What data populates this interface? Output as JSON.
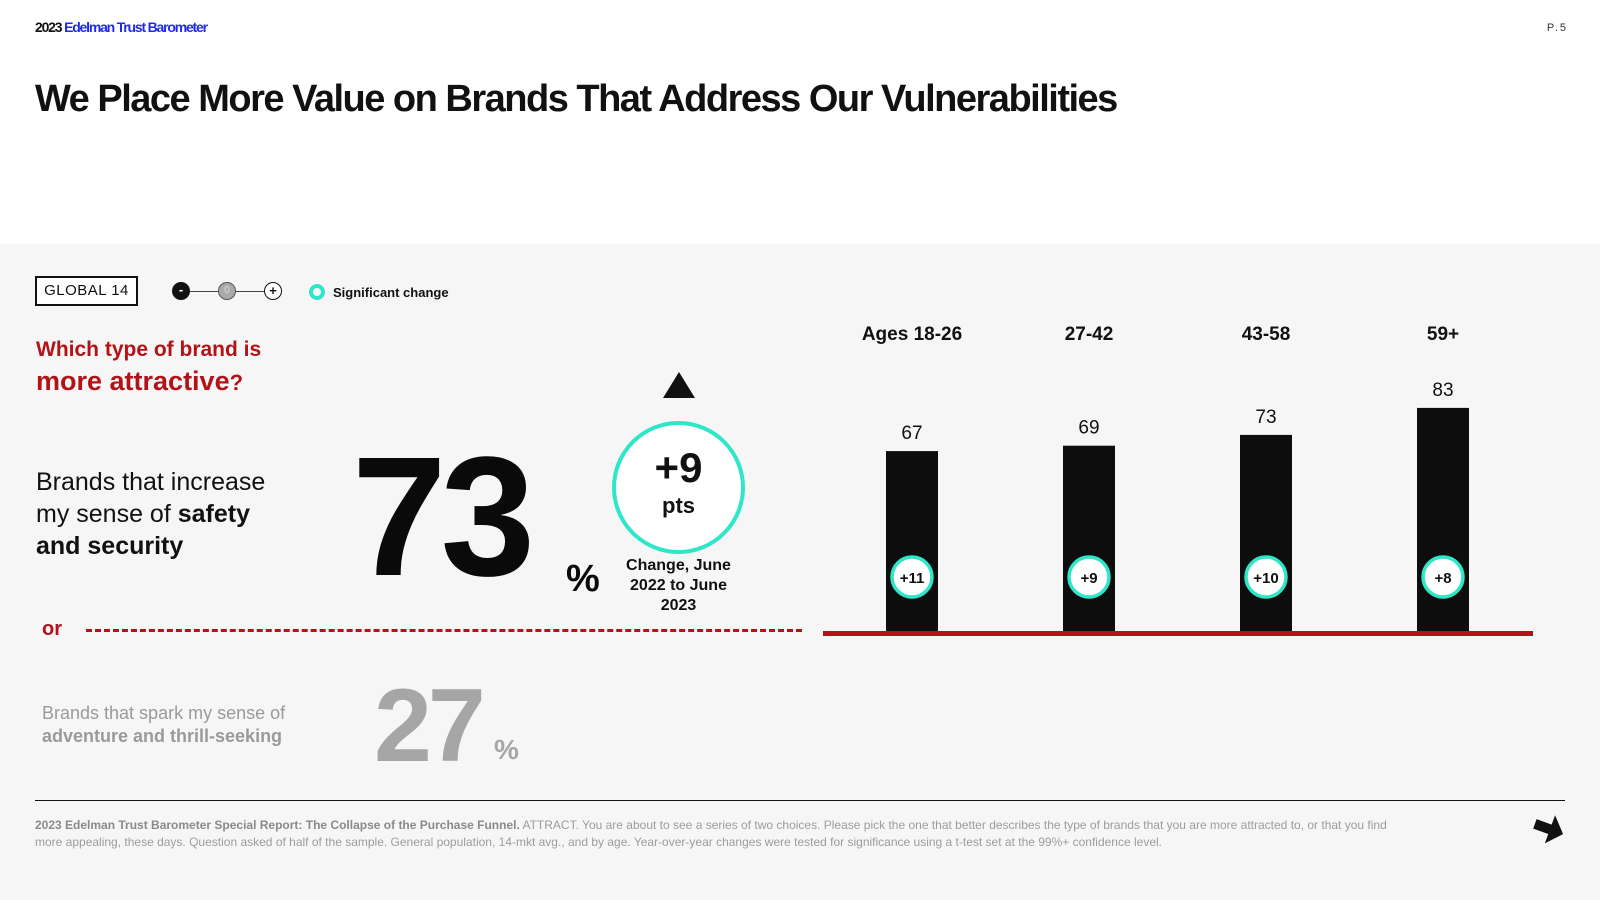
{
  "header": {
    "brand_year": "2023",
    "brand_name": "Edelman Trust Barometer",
    "page_number": "P.5",
    "title": "We Place More Value on Brands That Address Our Vulnerabilities"
  },
  "legend": {
    "region": "GLOBAL 14",
    "scale_minus": "-",
    "scale_zero": "0",
    "scale_plus": "+",
    "significant_label": "Significant change",
    "significant_color": "#2ee6c8"
  },
  "question": {
    "line1": "Which type of brand is",
    "line2": "more attractive",
    "mark": "?"
  },
  "option_safety": {
    "text_pre": "Brands that increase my sense of ",
    "text_bold": "safety and security",
    "value": "73",
    "unit": "%"
  },
  "change": {
    "value": "+9",
    "unit": "pts",
    "caption": "Change, June 2022 to June 2023"
  },
  "divider": {
    "label": "or"
  },
  "option_adventure": {
    "text_pre": "Brands that spark my sense of ",
    "text_bold": "adventure and thrill-seeking",
    "value": "27",
    "unit": "%"
  },
  "chart_data": {
    "type": "bar",
    "categories": [
      "Ages 18-26",
      "27-42",
      "43-58",
      "59+"
    ],
    "values": [
      67,
      69,
      73,
      83
    ],
    "changes": [
      "+11",
      "+9",
      "+10",
      "+8"
    ],
    "significant": [
      true,
      true,
      true,
      true
    ],
    "bar_color": "#0d0d0d",
    "baseline_color": "#b31217",
    "ylim": [
      0,
      100
    ]
  },
  "footer": {
    "source_bold": "2023 Edelman Trust Barometer Special Report: The Collapse of the Purchase Funnel.",
    "source_text": " ATTRACT. You are about to see a series of two choices. Please pick the one that better describes the type of brands that you are more attracted to, or that you find more appealing, these days. Question asked of half of the sample. General population, 14-mkt avg., and by age. Year-over-year changes were tested for significance using a t-test set at the 99%+ confidence level."
  }
}
